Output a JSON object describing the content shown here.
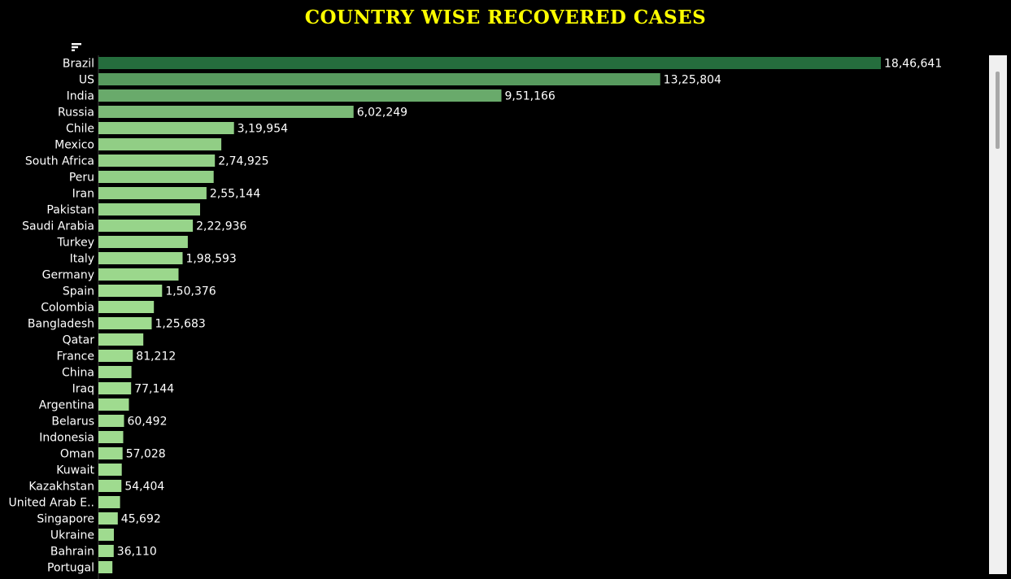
{
  "chart_data": {
    "type": "bar",
    "orientation": "horizontal",
    "title": "COUNTRY WISE RECOVERED CASES",
    "xlabel": "",
    "ylabel": "",
    "xlim": [
      0,
      1900000
    ],
    "grid": false,
    "colors": {
      "title": "#ffff00",
      "background": "#000000",
      "bar_dark": "#256d3d",
      "bar_light": "#9fdb8f"
    },
    "categories": [
      "Brazil",
      "US",
      "India",
      "Russia",
      "Chile",
      "Mexico",
      "South Africa",
      "Peru",
      "Iran",
      "Pakistan",
      "Saudi Arabia",
      "Turkey",
      "Italy",
      "Germany",
      "Spain",
      "Colombia",
      "Bangladesh",
      "Qatar",
      "France",
      "China",
      "Iraq",
      "Argentina",
      "Belarus",
      "Indonesia",
      "Oman",
      "Kuwait",
      "Kazakhstan",
      "United Arab E..",
      "Singapore",
      "Ukraine",
      "Bahrain",
      "Portugal"
    ],
    "values": [
      1846641,
      1325804,
      951166,
      602249,
      319954,
      290000,
      274925,
      272000,
      255144,
      240000,
      222936,
      211000,
      198593,
      189000,
      150376,
      131000,
      125683,
      106000,
      81212,
      78000,
      77144,
      72000,
      60492,
      58500,
      57028,
      55000,
      54404,
      51000,
      45692,
      36500,
      36110,
      33000
    ],
    "value_labels": [
      "18,46,641",
      "13,25,804",
      "9,51,166",
      "6,02,249",
      "3,19,954",
      "",
      "2,74,925",
      "",
      "2,55,144",
      "",
      "2,22,936",
      "",
      "1,98,593",
      "",
      "1,50,376",
      "",
      "1,25,683",
      "",
      "81,212",
      "",
      "77,144",
      "",
      "60,492",
      "",
      "57,028",
      "",
      "54,404",
      "",
      "45,692",
      "",
      "36,110",
      ""
    ]
  },
  "icons": {
    "sort": "sort-descending-icon"
  }
}
